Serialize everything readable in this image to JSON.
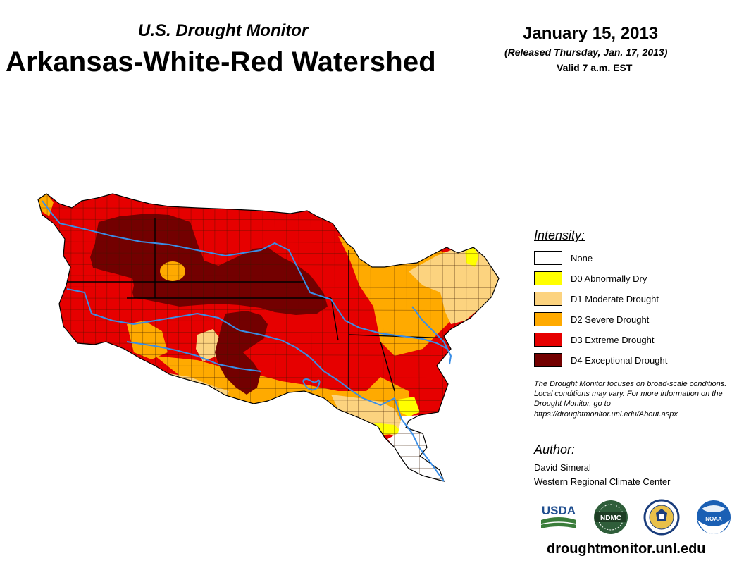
{
  "header": {
    "subtitle": "U.S. Drought Monitor",
    "title": "Arkansas-White-Red Watershed",
    "date": "January 15, 2013",
    "released": "(Released Thursday, Jan. 17, 2013)",
    "valid": "Valid 7 a.m. EST"
  },
  "legend": {
    "heading": "Intensity:",
    "items": [
      {
        "label": "None",
        "color": "#ffffff"
      },
      {
        "label": "D0 Abnormally Dry",
        "color": "#ffff00"
      },
      {
        "label": "D1 Moderate Drought",
        "color": "#fcd37f"
      },
      {
        "label": "D2 Severe Drought",
        "color": "#ffaa00"
      },
      {
        "label": "D3 Extreme Drought",
        "color": "#e60000"
      },
      {
        "label": "D4 Exceptional Drought",
        "color": "#730000"
      }
    ]
  },
  "note": "The Drought Monitor focuses on broad-scale conditions. Local conditions may vary. For more information on the Drought Monitor, go to https://droughtmonitor.unl.edu/About.aspx",
  "author": {
    "heading": "Author:",
    "name": "David Simeral",
    "org": "Western Regional Climate Center"
  },
  "logos": {
    "usda": "USDA",
    "ndmc": "NDMC",
    "noaa": "NOAA"
  },
  "colors": {
    "river": "#3a8ee6",
    "county_line": "#3a1a00",
    "usda_blue": "#1f4e8f",
    "usda_green": "#3a7d3a",
    "ndmc_green": "#2f5e3a",
    "noaa_blue": "#1a5fb4"
  },
  "website": "droughtmonitor.unl.edu"
}
